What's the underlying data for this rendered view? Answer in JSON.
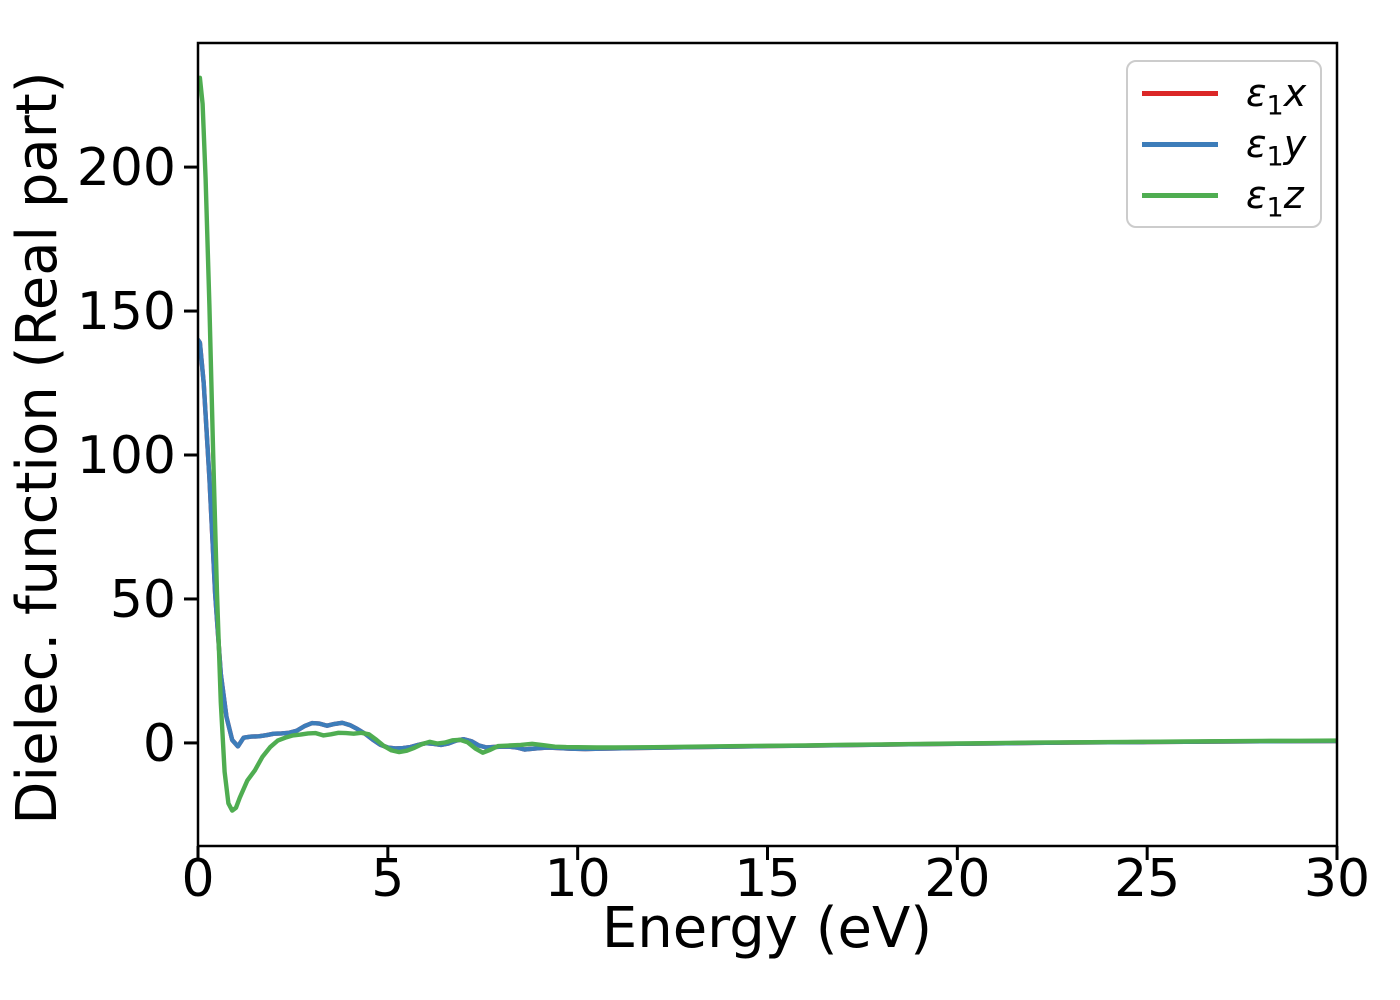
{
  "chart_data": {
    "type": "line",
    "title": "",
    "xlabel": "Energy (eV)",
    "ylabel": "Dielec. function (Real part)",
    "xlim": [
      0,
      30
    ],
    "ylim": [
      -35.8,
      243.1
    ],
    "xticks": [
      0,
      5,
      10,
      15,
      20,
      25,
      30
    ],
    "yticks": [
      0,
      50,
      100,
      150,
      200
    ],
    "grid": false,
    "legend_position": "upper right",
    "axis_color": "#000000",
    "background_color": "#ffffff",
    "series": [
      {
        "name": "eps1x",
        "legend": {
          "symbol": "ε",
          "sub": "1",
          "axis": "x"
        },
        "color": "#db2727",
        "x": [
          0,
          0.05,
          0.15,
          0.3,
          0.45,
          0.6,
          0.75,
          0.9,
          1.05,
          1.2,
          1.4,
          1.6,
          1.8,
          2.0,
          2.2,
          2.4,
          2.6,
          2.8,
          3.0,
          3.2,
          3.4,
          3.6,
          3.8,
          4.0,
          4.2,
          4.4,
          4.6,
          4.8,
          5.0,
          5.2,
          5.4,
          5.6,
          5.8,
          6.0,
          6.2,
          6.4,
          6.6,
          6.8,
          7.0,
          7.2,
          7.4,
          7.6,
          7.8,
          8.0,
          8.2,
          8.4,
          8.6,
          8.9,
          9.2,
          9.5,
          9.8,
          10.2,
          10.6,
          11.0,
          12,
          13,
          14,
          15,
          16,
          17,
          18,
          19,
          20,
          21,
          22,
          23,
          24,
          25,
          26,
          27,
          28,
          29,
          30
        ],
        "y": [
          140,
          139,
          125,
          92,
          52,
          24,
          9,
          1.0,
          -1.2,
          1.8,
          2.2,
          2.3,
          2.7,
          3.2,
          3.3,
          3.5,
          4.2,
          5.8,
          6.9,
          6.7,
          6.0,
          6.6,
          7.0,
          6.2,
          4.8,
          3.2,
          1.2,
          -0.6,
          -1.6,
          -1.9,
          -1.8,
          -1.4,
          -0.7,
          -0.1,
          -0.3,
          -0.7,
          -0.2,
          0.8,
          1.3,
          0.6,
          -0.9,
          -1.6,
          -1.4,
          -1.3,
          -1.3,
          -1.6,
          -2.3,
          -1.9,
          -1.6,
          -1.8,
          -2.0,
          -2.1,
          -2.0,
          -1.9,
          -1.7,
          -1.5,
          -1.3,
          -1.1,
          -0.95,
          -0.8,
          -0.6,
          -0.45,
          -0.3,
          -0.15,
          0,
          0.1,
          0.2,
          0.3,
          0.4,
          0.5,
          0.55,
          0.6,
          0.65
        ]
      },
      {
        "name": "eps1y",
        "legend": {
          "symbol": "ε",
          "sub": "1",
          "axis": "y"
        },
        "color": "#3d7dba",
        "x": [
          0,
          0.05,
          0.15,
          0.3,
          0.45,
          0.6,
          0.75,
          0.9,
          1.05,
          1.2,
          1.4,
          1.6,
          1.8,
          2.0,
          2.2,
          2.4,
          2.6,
          2.8,
          3.0,
          3.2,
          3.4,
          3.6,
          3.8,
          4.0,
          4.2,
          4.4,
          4.6,
          4.8,
          5.0,
          5.2,
          5.4,
          5.6,
          5.8,
          6.0,
          6.2,
          6.4,
          6.6,
          6.8,
          7.0,
          7.2,
          7.4,
          7.6,
          7.8,
          8.0,
          8.2,
          8.4,
          8.6,
          8.9,
          9.2,
          9.5,
          9.8,
          10.2,
          10.6,
          11.0,
          12,
          13,
          14,
          15,
          16,
          17,
          18,
          19,
          20,
          21,
          22,
          23,
          24,
          25,
          26,
          27,
          28,
          29,
          30
        ],
        "y": [
          140,
          139,
          125,
          92,
          52,
          24,
          9,
          1.0,
          -1.2,
          1.8,
          2.2,
          2.3,
          2.7,
          3.2,
          3.3,
          3.5,
          4.2,
          5.8,
          6.9,
          6.7,
          6.0,
          6.6,
          7.0,
          6.2,
          4.8,
          3.2,
          1.2,
          -0.6,
          -1.6,
          -1.9,
          -1.8,
          -1.4,
          -0.7,
          -0.1,
          -0.3,
          -0.7,
          -0.2,
          0.8,
          1.3,
          0.6,
          -0.9,
          -1.6,
          -1.4,
          -1.3,
          -1.3,
          -1.6,
          -2.3,
          -1.9,
          -1.6,
          -1.8,
          -2.0,
          -2.1,
          -2.0,
          -1.9,
          -1.7,
          -1.5,
          -1.3,
          -1.1,
          -0.95,
          -0.8,
          -0.6,
          -0.45,
          -0.3,
          -0.15,
          0,
          0.1,
          0.2,
          0.3,
          0.4,
          0.5,
          0.55,
          0.6,
          0.65
        ]
      },
      {
        "name": "eps1z",
        "legend": {
          "symbol": "ε",
          "sub": "1",
          "axis": "z"
        },
        "color": "#4fad51",
        "x": [
          0,
          0.05,
          0.12,
          0.2,
          0.3,
          0.4,
          0.5,
          0.6,
          0.7,
          0.8,
          0.9,
          1.0,
          1.1,
          1.3,
          1.5,
          1.7,
          1.9,
          2.1,
          2.3,
          2.5,
          2.7,
          2.9,
          3.1,
          3.3,
          3.5,
          3.7,
          3.9,
          4.1,
          4.3,
          4.5,
          4.7,
          4.9,
          5.1,
          5.3,
          5.5,
          5.7,
          5.9,
          6.1,
          6.3,
          6.5,
          6.7,
          6.9,
          7.1,
          7.3,
          7.5,
          7.7,
          7.9,
          8.2,
          8.5,
          8.8,
          9.1,
          9.4,
          9.7,
          10.0,
          10.5,
          11,
          12,
          13,
          14,
          15,
          16,
          17,
          18,
          19,
          20,
          21,
          22,
          23,
          24,
          25,
          26,
          27,
          28,
          29,
          30
        ],
        "y": [
          228,
          231,
          222,
          196,
          152,
          100,
          52,
          14,
          -10,
          -21,
          -23.5,
          -22.5,
          -19,
          -13,
          -9.5,
          -4.8,
          -1.5,
          0.8,
          1.8,
          2.6,
          2.9,
          3.3,
          3.4,
          2.6,
          3.0,
          3.5,
          3.4,
          3.2,
          3.5,
          3.0,
          1.1,
          -1.1,
          -2.6,
          -3.2,
          -2.7,
          -1.7,
          -0.4,
          0.4,
          -0.2,
          0.1,
          0.9,
          1.1,
          0.2,
          -1.9,
          -3.4,
          -2.4,
          -1.1,
          -0.9,
          -0.7,
          -0.3,
          -0.8,
          -1.3,
          -1.45,
          -1.5,
          -1.6,
          -1.6,
          -1.5,
          -1.3,
          -1.15,
          -1.0,
          -0.85,
          -0.65,
          -0.5,
          -0.35,
          -0.2,
          -0.05,
          0.1,
          0.2,
          0.3,
          0.4,
          0.5,
          0.6,
          0.7,
          0.75,
          0.8
        ]
      }
    ]
  }
}
